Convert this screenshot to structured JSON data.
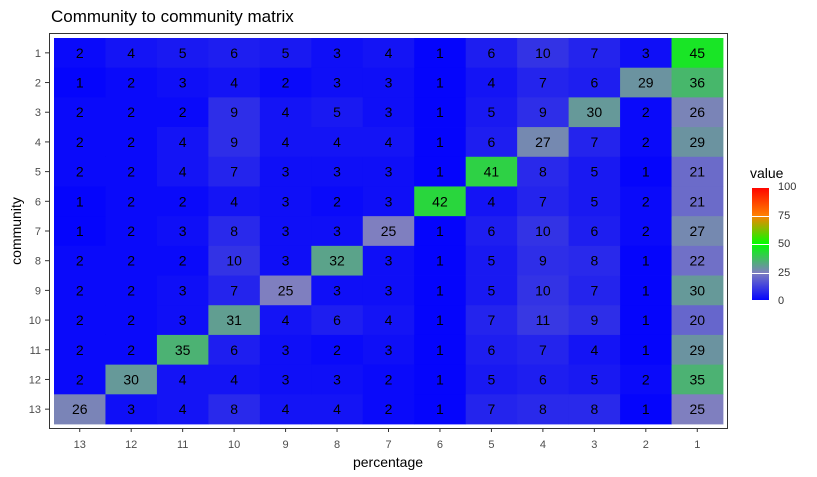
{
  "chart_data": {
    "type": "heatmap",
    "title": "Community to community matrix",
    "xlabel": "percentage",
    "ylabel": "community",
    "x_categories": [
      "13",
      "12",
      "11",
      "10",
      "9",
      "8",
      "7",
      "6",
      "5",
      "4",
      "3",
      "2",
      "1"
    ],
    "y_categories": [
      "1",
      "2",
      "3",
      "4",
      "5",
      "6",
      "7",
      "8",
      "9",
      "10",
      "11",
      "12",
      "13"
    ],
    "values": [
      [
        2,
        4,
        5,
        6,
        5,
        3,
        4,
        1,
        6,
        10,
        7,
        3,
        45
      ],
      [
        1,
        2,
        3,
        4,
        2,
        3,
        3,
        1,
        4,
        7,
        6,
        29,
        36
      ],
      [
        2,
        2,
        2,
        9,
        4,
        5,
        3,
        1,
        5,
        9,
        30,
        2,
        26
      ],
      [
        2,
        2,
        4,
        9,
        4,
        4,
        4,
        1,
        6,
        27,
        7,
        2,
        29
      ],
      [
        2,
        2,
        4,
        7,
        3,
        3,
        3,
        1,
        41,
        8,
        5,
        1,
        21
      ],
      [
        1,
        2,
        2,
        4,
        3,
        2,
        3,
        42,
        4,
        7,
        5,
        2,
        21
      ],
      [
        1,
        2,
        3,
        8,
        3,
        3,
        25,
        1,
        6,
        10,
        6,
        2,
        27
      ],
      [
        2,
        2,
        2,
        10,
        3,
        32,
        3,
        1,
        5,
        9,
        8,
        1,
        22
      ],
      [
        2,
        2,
        3,
        7,
        25,
        3,
        3,
        1,
        5,
        10,
        7,
        1,
        30
      ],
      [
        2,
        2,
        3,
        31,
        4,
        6,
        4,
        1,
        7,
        11,
        9,
        1,
        20
      ],
      [
        2,
        2,
        35,
        6,
        3,
        2,
        3,
        1,
        6,
        7,
        4,
        1,
        29
      ],
      [
        2,
        30,
        4,
        4,
        3,
        3,
        2,
        1,
        5,
        6,
        5,
        2,
        35
      ],
      [
        26,
        3,
        4,
        8,
        4,
        4,
        2,
        1,
        7,
        8,
        8,
        1,
        25
      ]
    ],
    "color_scale": {
      "title": "value",
      "limits": [
        0,
        100
      ],
      "breaks": [
        0,
        25,
        50,
        75,
        100
      ],
      "colors": [
        "#0000ff",
        "#7f7fbf",
        "#00ff00",
        "#ff8000",
        "#ff0000"
      ]
    },
    "grid": false,
    "legend_position": "right"
  }
}
